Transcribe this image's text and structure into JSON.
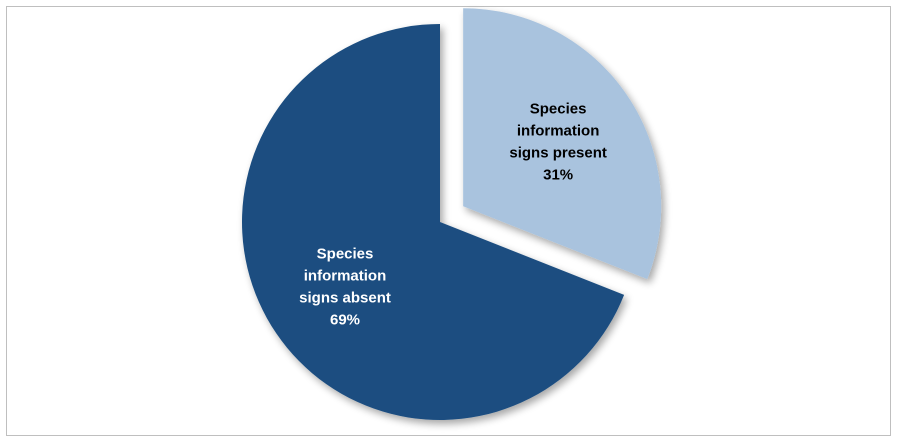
{
  "chart_data": {
    "type": "pie",
    "title": "",
    "legend": "none",
    "slices": [
      {
        "label_lines": [
          "Species",
          "information",
          "signs present"
        ],
        "value": 31,
        "value_label": "31%",
        "color": "#a9c3de",
        "text_color": "#000000",
        "exploded": true
      },
      {
        "label_lines": [
          "Species",
          "information",
          "signs absent"
        ],
        "value": 69,
        "value_label": "69%",
        "color": "#1b4e80",
        "text_color": "#ffffff",
        "exploded": false
      }
    ]
  }
}
